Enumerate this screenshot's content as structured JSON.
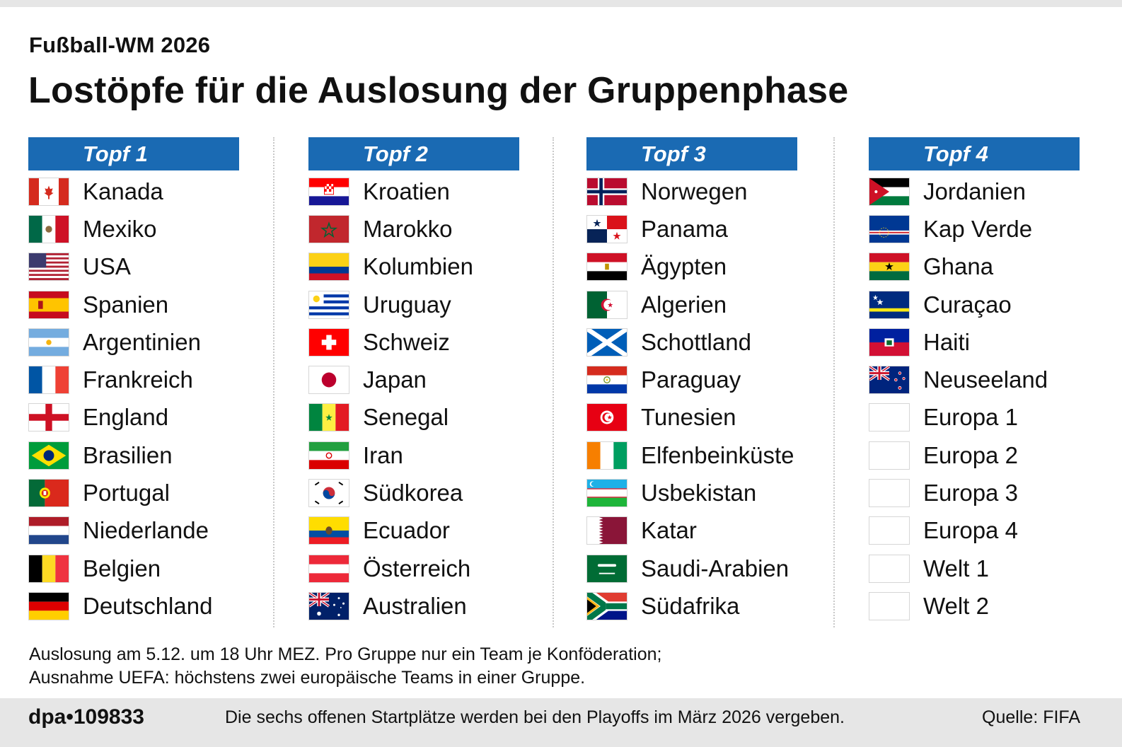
{
  "kicker": "Fußball-WM 2026",
  "title": "Lostöpfe für die Auslosung der Gruppenphase",
  "pots": [
    {
      "label": "Topf 1",
      "teams": [
        {
          "name": "Kanada",
          "flag": "flag-canada"
        },
        {
          "name": "Mexiko",
          "flag": "flag-mexico"
        },
        {
          "name": "USA",
          "flag": "flag-usa"
        },
        {
          "name": "Spanien",
          "flag": "flag-spain"
        },
        {
          "name": "Argentinien",
          "flag": "flag-argentina"
        },
        {
          "name": "Frankreich",
          "flag": "flag-france"
        },
        {
          "name": "England",
          "flag": "flag-england"
        },
        {
          "name": "Brasilien",
          "flag": "flag-brazil"
        },
        {
          "name": "Portugal",
          "flag": "flag-portugal"
        },
        {
          "name": "Niederlande",
          "flag": "flag-netherlands"
        },
        {
          "name": "Belgien",
          "flag": "flag-belgium"
        },
        {
          "name": "Deutschland",
          "flag": "flag-germany"
        }
      ]
    },
    {
      "label": "Topf 2",
      "teams": [
        {
          "name": "Kroatien",
          "flag": "flag-croatia"
        },
        {
          "name": "Marokko",
          "flag": "flag-morocco"
        },
        {
          "name": "Kolumbien",
          "flag": "flag-colombia"
        },
        {
          "name": "Uruguay",
          "flag": "flag-uruguay"
        },
        {
          "name": "Schweiz",
          "flag": "flag-switzerland"
        },
        {
          "name": "Japan",
          "flag": "flag-japan"
        },
        {
          "name": "Senegal",
          "flag": "flag-senegal"
        },
        {
          "name": "Iran",
          "flag": "flag-iran"
        },
        {
          "name": "Südkorea",
          "flag": "flag-south-korea"
        },
        {
          "name": "Ecuador",
          "flag": "flag-ecuador"
        },
        {
          "name": "Österreich",
          "flag": "flag-austria"
        },
        {
          "name": "Australien",
          "flag": "flag-australia"
        }
      ]
    },
    {
      "label": "Topf 3",
      "teams": [
        {
          "name": "Norwegen",
          "flag": "flag-norway"
        },
        {
          "name": "Panama",
          "flag": "flag-panama"
        },
        {
          "name": "Ägypten",
          "flag": "flag-egypt"
        },
        {
          "name": "Algerien",
          "flag": "flag-algeria"
        },
        {
          "name": "Schottland",
          "flag": "flag-scotland"
        },
        {
          "name": "Paraguay",
          "flag": "flag-paraguay"
        },
        {
          "name": "Tunesien",
          "flag": "flag-tunisia"
        },
        {
          "name": "Elfenbeinküste",
          "flag": "flag-ivory-coast"
        },
        {
          "name": "Usbekistan",
          "flag": "flag-uzbekistan"
        },
        {
          "name": "Katar",
          "flag": "flag-qatar"
        },
        {
          "name": "Saudi-Arabien",
          "flag": "flag-saudi-arabia"
        },
        {
          "name": "Südafrika",
          "flag": "flag-south-africa"
        }
      ]
    },
    {
      "label": "Topf 4",
      "teams": [
        {
          "name": "Jordanien",
          "flag": "flag-jordan"
        },
        {
          "name": "Kap Verde",
          "flag": "flag-cape-verde"
        },
        {
          "name": "Ghana",
          "flag": "flag-ghana"
        },
        {
          "name": "Curaçao",
          "flag": "flag-curacao"
        },
        {
          "name": "Haiti",
          "flag": "flag-haiti"
        },
        {
          "name": "Neuseeland",
          "flag": "flag-new-zealand"
        },
        {
          "name": "Europa 1",
          "flag": "flag-placeholder"
        },
        {
          "name": "Europa 2",
          "flag": "flag-placeholder"
        },
        {
          "name": "Europa 3",
          "flag": "flag-placeholder"
        },
        {
          "name": "Europa 4",
          "flag": "flag-placeholder"
        },
        {
          "name": "Welt 1",
          "flag": "flag-placeholder"
        },
        {
          "name": "Welt 2",
          "flag": "flag-placeholder"
        }
      ]
    }
  ],
  "note_line1": "Auslosung am 5.12. um 18 Uhr MEZ. Pro Gruppe nur ein Team je Konföderation;",
  "note_line2": "Ausnahme UEFA: höchstens zwei europäische Teams in einer Gruppe.",
  "footer": {
    "code": "dpa•109833",
    "info": "Die sechs offenen Startplätze werden bei den Playoffs im März 2026 vergeben.",
    "source": "Quelle: FIFA"
  },
  "colors": {
    "header_blue": "#1a6ab3",
    "footer_gray": "#e6e6e6"
  }
}
